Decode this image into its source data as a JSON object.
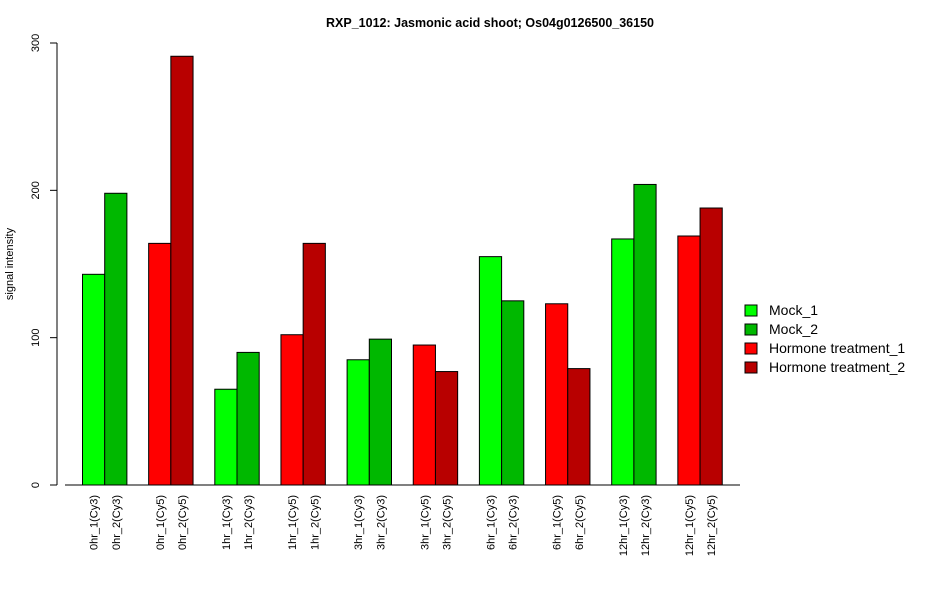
{
  "chart_data": {
    "type": "bar",
    "title": "RXP_1012: Jasmonic acid shoot; Os04g0126500_36150",
    "xlabel": "",
    "ylabel": "signal intensity",
    "ylim": [
      0,
      300
    ],
    "yticks": [
      0,
      100,
      200,
      300
    ],
    "categories": [
      "0hr_1(Cy3)",
      "0hr_2(Cy3)",
      "0hr_1(Cy5)",
      "0hr_2(Cy5)",
      "1hr_1(Cy3)",
      "1hr_2(Cy3)",
      "1hr_1(Cy5)",
      "1hr_2(Cy5)",
      "3hr_1(Cy3)",
      "3hr_2(Cy3)",
      "3hr_1(Cy5)",
      "3hr_2(Cy5)",
      "6hr_1(Cy3)",
      "6hr_2(Cy3)",
      "6hr_1(Cy5)",
      "6hr_2(Cy5)",
      "12hr_1(Cy3)",
      "12hr_2(Cy3)",
      "12hr_1(Cy5)",
      "12hr_2(Cy5)"
    ],
    "values": [
      143,
      198,
      164,
      291,
      65,
      90,
      102,
      164,
      85,
      99,
      95,
      77,
      155,
      125,
      123,
      79,
      167,
      204,
      169,
      188
    ],
    "bar_series": [
      0,
      1,
      2,
      3,
      0,
      1,
      2,
      3,
      0,
      1,
      2,
      3,
      0,
      1,
      2,
      3,
      0,
      1,
      2,
      3
    ],
    "series": [
      {
        "name": "Mock_1",
        "color": "#00ff00"
      },
      {
        "name": "Mock_2",
        "color": "#00b800"
      },
      {
        "name": "Hormone treatment_1",
        "color": "#ff0000"
      },
      {
        "name": "Hormone treatment_2",
        "color": "#b80000"
      }
    ],
    "legend_position": "right",
    "grid": false
  }
}
